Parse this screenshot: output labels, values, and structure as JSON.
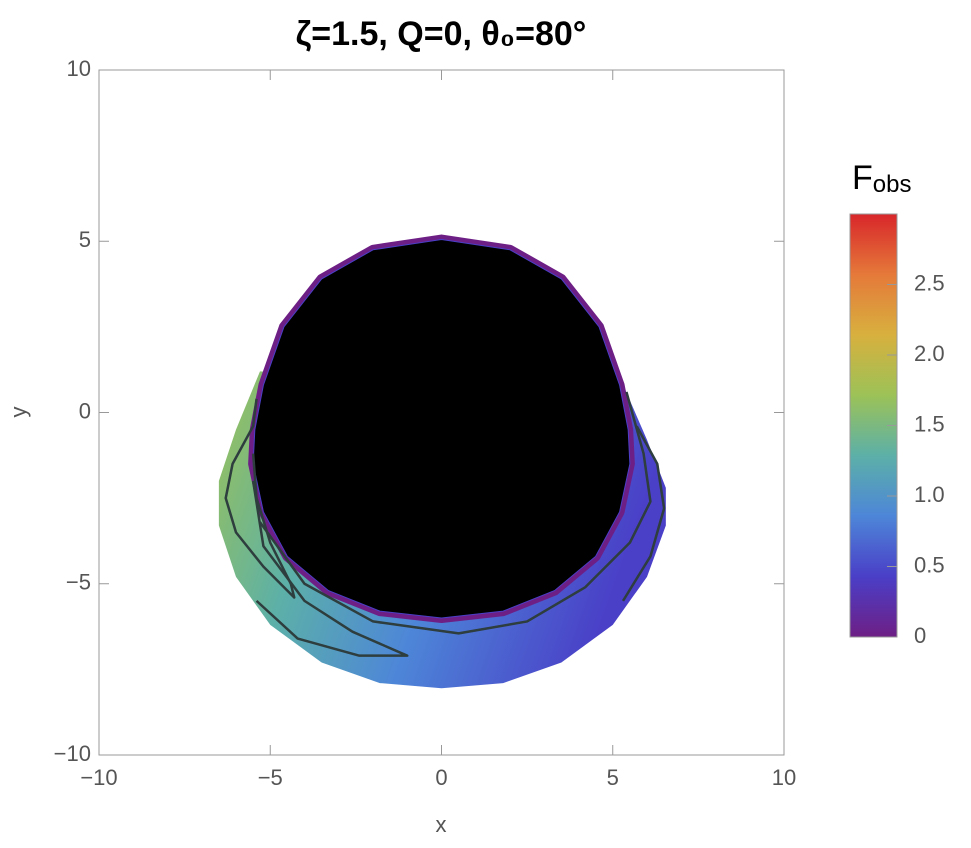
{
  "chart_data": {
    "type": "density",
    "title": "ζ=1.5, Q=0, θ₀=80°",
    "x_label": "x",
    "y_label": "y",
    "xlim": [
      -10,
      10
    ],
    "ylim": [
      -10,
      10
    ],
    "xticks": [
      {
        "value": -10,
        "label": "−10"
      },
      {
        "value": -5,
        "label": "−5"
      },
      0,
      5,
      10
    ],
    "yticks": [
      {
        "value": -10,
        "label": "−10"
      },
      {
        "value": -5,
        "label": "−5"
      },
      0,
      5,
      10
    ],
    "colorbar": {
      "label": "F",
      "label_sub": "obs",
      "clim": [
        0,
        3
      ],
      "ticks": [
        0,
        0.5,
        {
          "value": 1,
          "label": "1.0"
        },
        1.5,
        {
          "value": 2,
          "label": "2.0"
        },
        2.5
      ],
      "colormap": [
        "#6e1f85",
        "#4a3fc7",
        "#4d86d8",
        "#5cb0a8",
        "#9cc257",
        "#d8b03e",
        "#e5793a",
        "#d8262a"
      ]
    },
    "disk": {
      "x": [
        -5.3,
        -6.0,
        -6.5,
        -6.5,
        -6.0,
        -5.0,
        -3.5,
        -1.8,
        0,
        1.8,
        3.5,
        5.0,
        6.0,
        6.55,
        6.55,
        6.0,
        5.35
      ],
      "y": [
        1.2,
        -0.5,
        -2.0,
        -3.3,
        -4.8,
        -6.2,
        -7.3,
        -7.9,
        -8.05,
        -7.9,
        -7.3,
        -6.2,
        -4.8,
        -3.3,
        -2.2,
        -0.8,
        0.7
      ]
    },
    "shadow": {
      "x": [
        0,
        2,
        3.5,
        4.6,
        5.2,
        5.45,
        5.5,
        5.2,
        4.5,
        3.3,
        1.8,
        0,
        -1.8,
        -3.3,
        -4.5,
        -5.2,
        -5.5,
        -5.45,
        -5.2,
        -4.6,
        -3.5,
        -2
      ],
      "y": [
        5.05,
        4.75,
        3.9,
        2.5,
        0.8,
        -0.5,
        -1.5,
        -2.9,
        -4.2,
        -5.2,
        -5.8,
        -6.0,
        -5.8,
        -5.2,
        -4.2,
        -2.9,
        -1.5,
        -0.5,
        0.8,
        2.5,
        3.9,
        4.75
      ]
    },
    "contours": [
      {
        "x": [
          -5.4,
          -5.5,
          -6.1,
          -6.3,
          -6.0,
          -5.2,
          -4.3,
          -4.4,
          -5.0,
          -5.4,
          -5.5
        ],
        "y": [
          0.4,
          -0.4,
          -1.5,
          -2.5,
          -3.5,
          -4.5,
          -5.4,
          -5.0,
          -3.8,
          -2.5,
          -1.2
        ]
      },
      {
        "x": [
          -5.4,
          -4.2,
          -2.4,
          -1.0,
          -2.6,
          -4.0,
          -5.2,
          -5.5
        ],
        "y": [
          -5.5,
          -6.6,
          -7.1,
          -7.1,
          -6.4,
          -5.5,
          -3.9,
          -2.0
        ]
      },
      {
        "x": [
          -5.3,
          -4.0,
          -2.0,
          0.5,
          2.5,
          4.2,
          5.5,
          6.1,
          5.9,
          5.4
        ],
        "y": [
          -3.2,
          -5.0,
          -6.1,
          -6.45,
          -6.1,
          -5.1,
          -3.8,
          -2.6,
          -1.2,
          0.6
        ]
      },
      {
        "x": [
          5.3,
          6.1,
          6.5,
          6.3,
          5.7
        ],
        "y": [
          -5.5,
          -4.2,
          -2.8,
          -1.5,
          -0.4
        ]
      }
    ]
  }
}
